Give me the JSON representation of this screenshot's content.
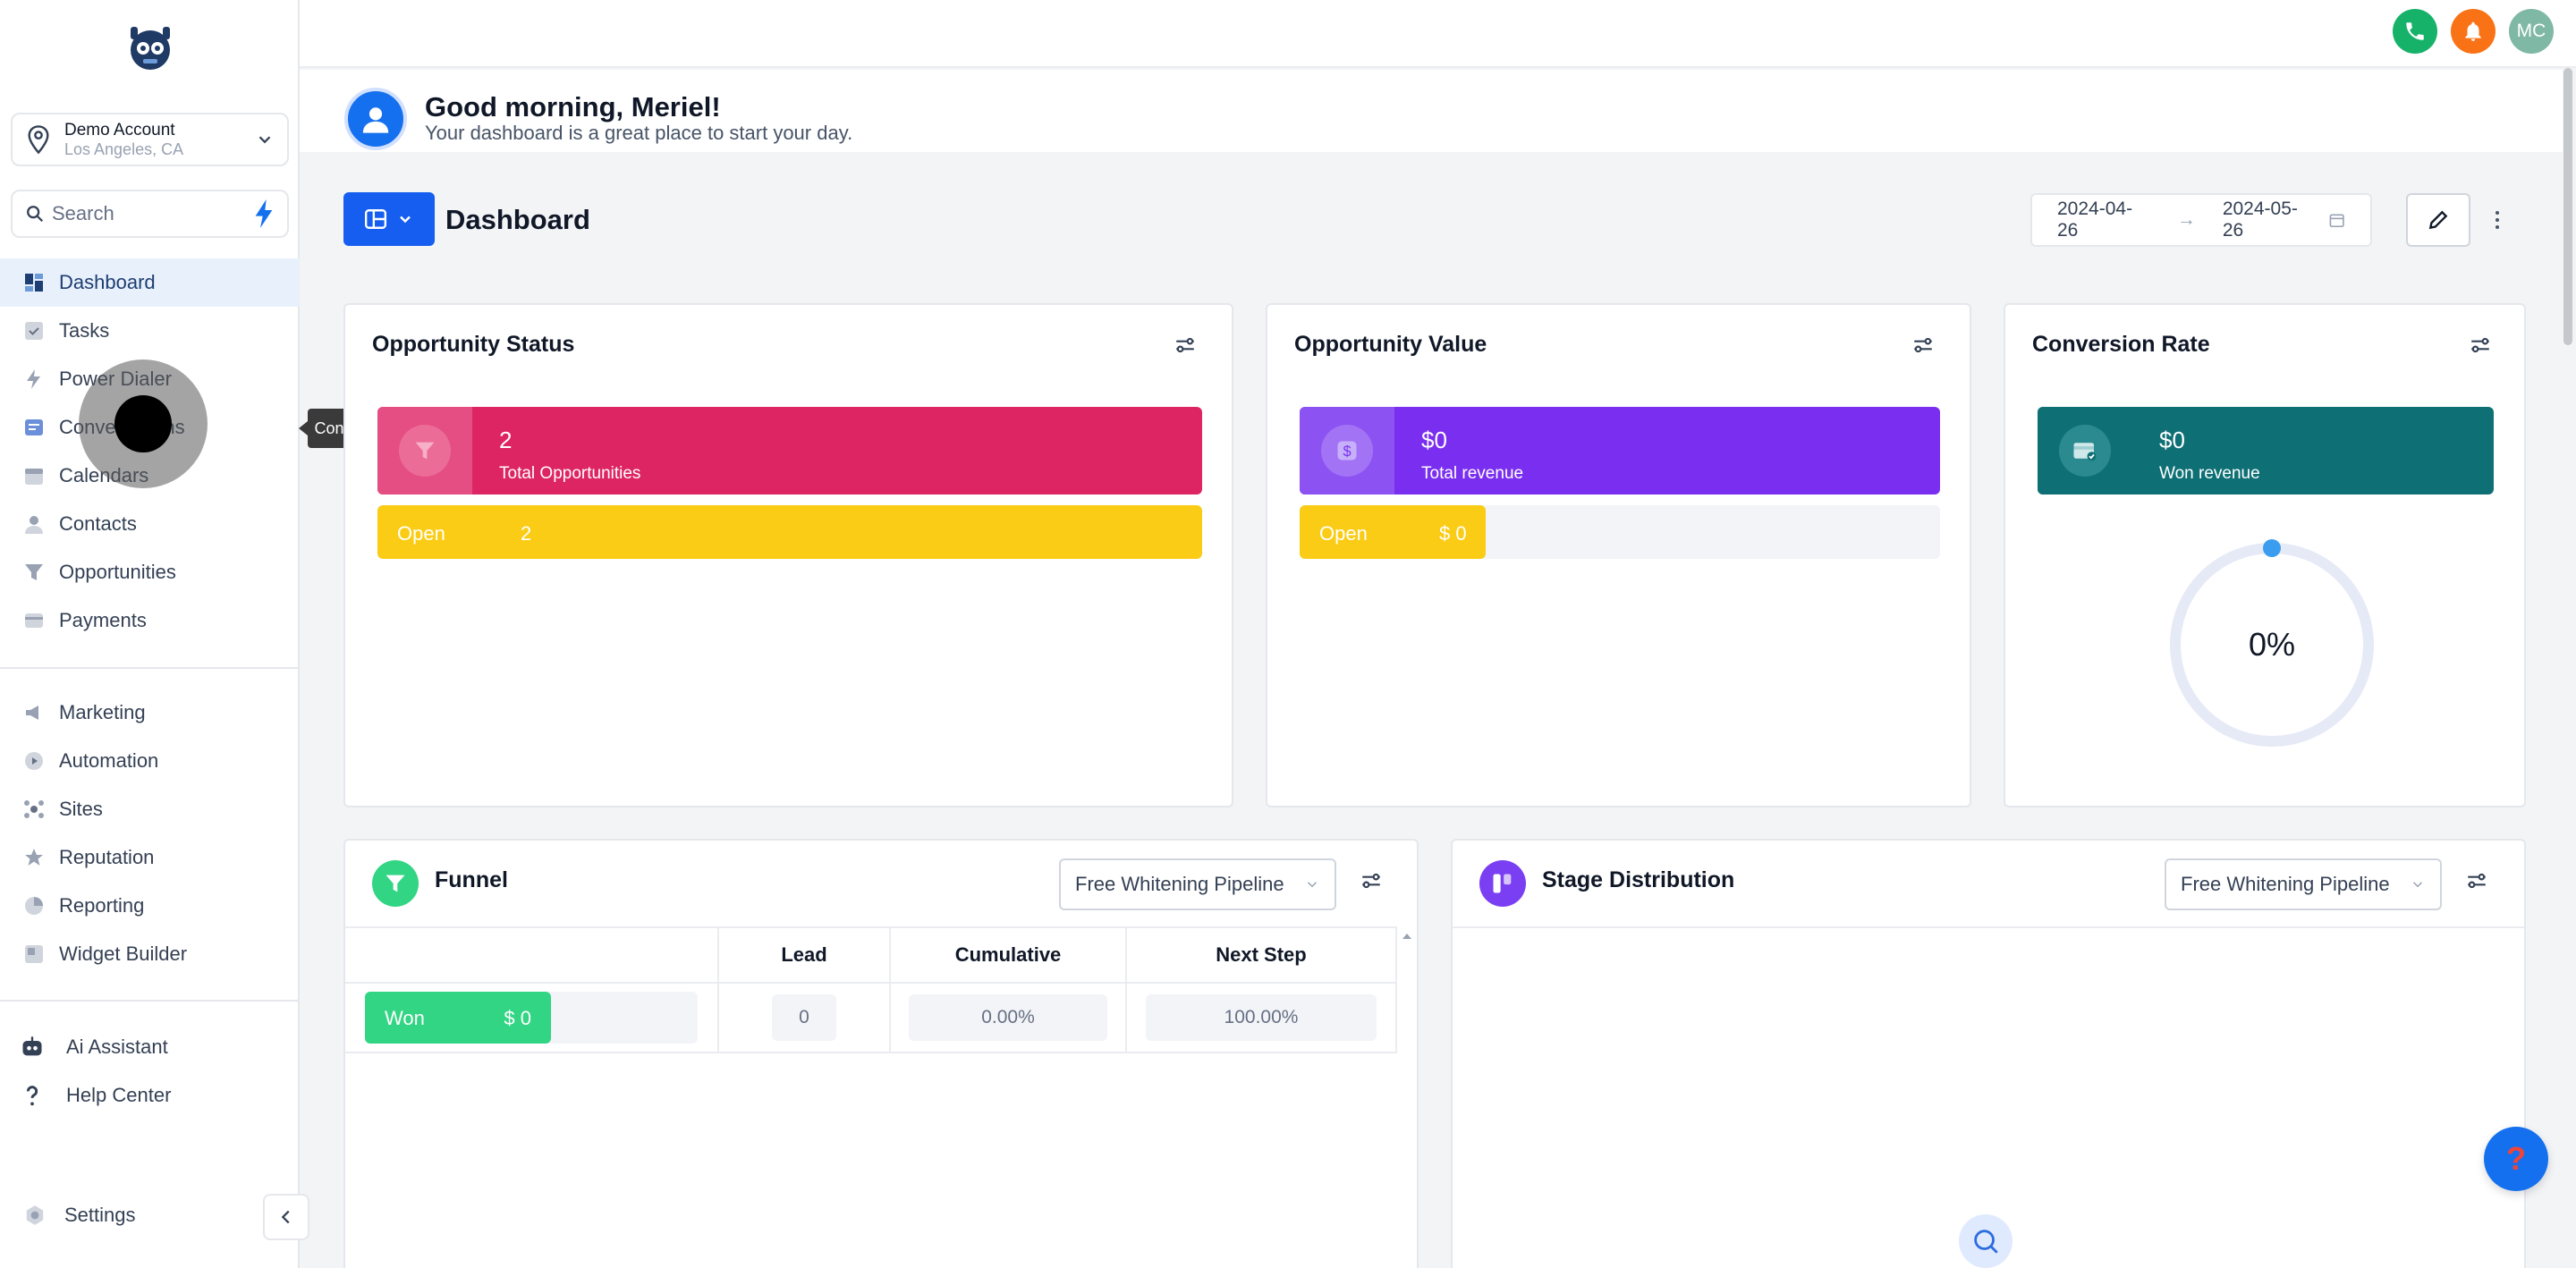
{
  "account": {
    "name": "Demo Account",
    "location": "Los Angeles, CA"
  },
  "search": {
    "placeholder": "Search"
  },
  "sidebar": {
    "items": [
      {
        "label": "Dashboard",
        "icon": "dashboard-icon"
      },
      {
        "label": "Tasks",
        "icon": "tasks-icon"
      },
      {
        "label": "Power Dialer",
        "icon": "power-dialer-icon"
      },
      {
        "label": "Conversations",
        "icon": "conversations-icon"
      },
      {
        "label": "Calendars",
        "icon": "calendar-icon"
      },
      {
        "label": "Contacts",
        "icon": "contacts-icon"
      },
      {
        "label": "Opportunities",
        "icon": "funnel-icon"
      },
      {
        "label": "Payments",
        "icon": "payments-icon"
      }
    ],
    "items2": [
      {
        "label": "Marketing",
        "icon": "megaphone-icon"
      },
      {
        "label": "Automation",
        "icon": "automation-icon"
      },
      {
        "label": "Sites",
        "icon": "sites-icon"
      },
      {
        "label": "Reputation",
        "icon": "reputation-icon"
      },
      {
        "label": "Reporting",
        "icon": "reporting-icon"
      },
      {
        "label": "Widget Builder",
        "icon": "widget-icon"
      }
    ],
    "items3": [
      {
        "label": "Ai Assistant",
        "icon": "robot-icon"
      },
      {
        "label": "Help Center",
        "icon": "question-icon"
      }
    ],
    "settings": "Settings",
    "tooltip": "Conversations"
  },
  "topbar": {
    "user_initials": "MC"
  },
  "greeting": {
    "title": "Good morning, Meriel!",
    "subtitle": "Your dashboard is a great place to start your day."
  },
  "dashboard": {
    "title": "Dashboard",
    "date_start": "2024-04-26",
    "date_end": "2024-05-26"
  },
  "opportunity_status": {
    "title": "Opportunity Status",
    "total_value": "2",
    "total_label": "Total Opportunities",
    "status_label": "Open",
    "status_count": "2",
    "status_fill_fraction": 1.0
  },
  "opportunity_value": {
    "title": "Opportunity Value",
    "total_value": "$0",
    "total_label": "Total revenue",
    "status_label": "Open",
    "status_amount": "$ 0",
    "status_fill_fraction": 0.29
  },
  "conversion_rate": {
    "title": "Conversion Rate",
    "won_value": "$0",
    "won_label": "Won revenue",
    "rate": "0%"
  },
  "funnel": {
    "title": "Funnel",
    "pipeline": "Free Whitening Pipeline",
    "columns": [
      "",
      "Lead",
      "Cumulative",
      "Next Step"
    ],
    "rows": [
      {
        "stage": "Won",
        "amount": "$ 0",
        "lead": "0",
        "cumulative": "0.00%",
        "next_step": "100.00%"
      }
    ]
  },
  "stage_distribution": {
    "title": "Stage Distribution",
    "pipeline": "Free Whitening Pipeline"
  },
  "colors": {
    "primary": "#155eef",
    "status_pink": "#dd2563",
    "status_purple": "#7a2ff0",
    "status_teal": "#0e7075",
    "open_yellow": "#facc15",
    "won_green": "#32d583"
  }
}
